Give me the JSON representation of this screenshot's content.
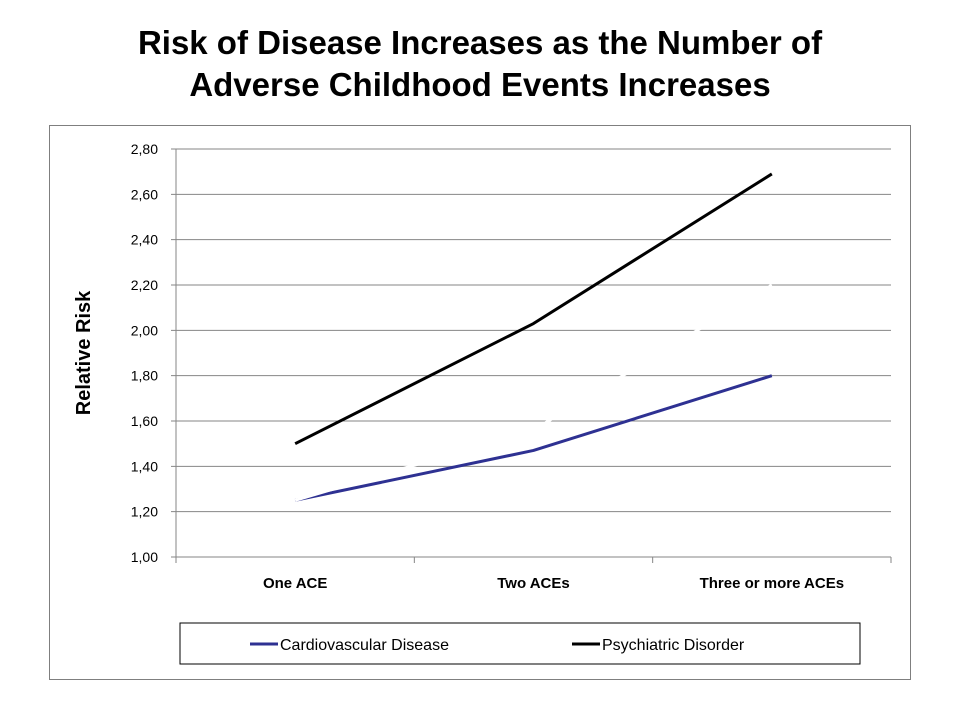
{
  "title": {
    "line1": "Risk of Disease Increases as the Number of",
    "line2": "Adverse Childhood Events Increases"
  },
  "chart_data": {
    "type": "line",
    "categories": [
      "One ACE",
      "Two ACEs",
      "Three or more ACEs"
    ],
    "series": [
      {
        "name": "Cardiovascular Disease",
        "values": [
          1.25,
          1.47,
          1.8
        ],
        "color": "#2E3192"
      },
      {
        "name": "Psychiatric Disorder",
        "values": [
          1.5,
          2.03,
          2.69
        ],
        "color": "#000000"
      },
      {
        "values": [
          1.25,
          1.56,
          2.2
        ],
        "color": "#ffffff"
      }
    ],
    "ylabel": "Relative Risk",
    "ylim": [
      1.0,
      2.8
    ],
    "yticks": [
      "1,00",
      "1,20",
      "1,40",
      "1,60",
      "1,80",
      "2,00",
      "2,20",
      "2,40",
      "2,60",
      "2,80"
    ],
    "grid": true,
    "legend": "bottom"
  }
}
